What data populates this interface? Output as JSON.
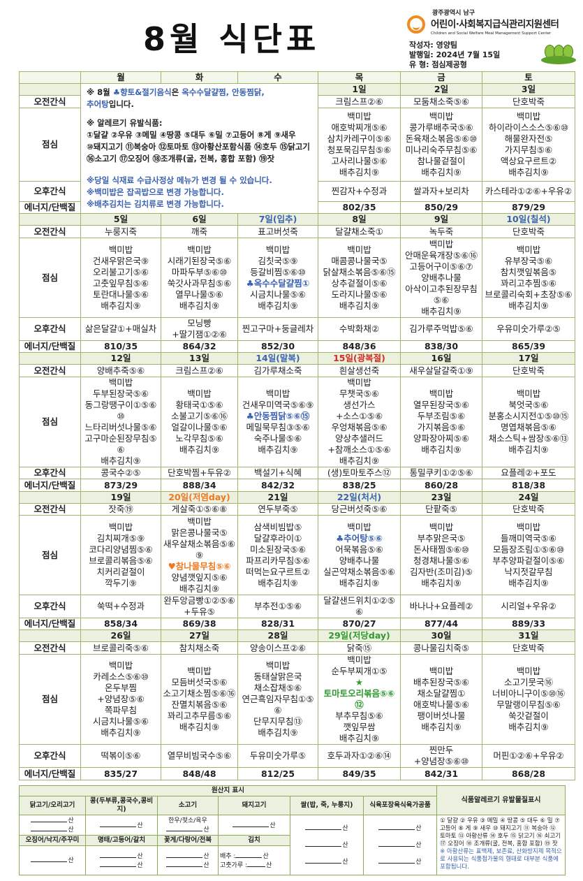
{
  "header": {
    "title": "8월 식단표",
    "logo_region": "광주광역시 남구",
    "logo_name": "어린이·사회복지급식관리지원센터",
    "logo_en": "Children and Social Welfare Meal Management Support Center",
    "author_label": "작성자:",
    "author": "영양팀",
    "issued_label": "발행일:",
    "issued": "2024년  7월  15일",
    "type_label": "유   형:",
    "type": "점심제공형"
  },
  "weekdays": [
    "월",
    "화",
    "수",
    "목",
    "금",
    "토"
  ],
  "row_labels": {
    "am": "오전간식",
    "lunch": "점심",
    "pm": "오후간식",
    "energy": "에너지/단백질"
  },
  "notes": {
    "l1_prefix": "※ 8월 ",
    "l1_highlight": "♣향토&절기음식",
    "l1_mid": "은 ",
    "l1_dishes": "옥수수달걀찜, 안동찜닭, 추어탕",
    "l1_suffix": "입니다.",
    "allergy_title": "※ 알레르기 유발식품:",
    "allergy_list": "①달걀 ②우유 ③메밀 ④땅콩 ⑤대두 ⑥밀 ⑦고등어 ⑧게 ⑨새우 ⑩돼지고기 ⑪복숭아 ⑫토마토 ⑬아황산포함식품 ⑭호두 ⑮닭고기 ⑯소고기 ⑰오징어 ⑱조개류(굴, 전복, 홍합 포함) ⑲잣",
    "note1": "※당일 식재료 수급사정상 메뉴가 변경 될 수 있습니다.",
    "note2": "※백미밥은 잡곡밥으로 변경 가능합니다.",
    "note3": "※배추김치는 김치류로 변경 가능합니다."
  },
  "colors": {
    "blue": "#3a62b0",
    "red": "#d42a20",
    "orange": "#f07820",
    "green": "#2e9a2e",
    "border": "#9bb56a",
    "date_bg": "#ebf1de"
  },
  "weeks": [
    {
      "days": [
        {
          "date": "1일",
          "am": "크림스프②⑥",
          "lunch": [
            "백미밥",
            "애호박찌개⑤⑥",
            "삼치카레구이⑤⑥",
            "청포묵김무침⑤⑥",
            "고사리나물⑤⑥",
            "배추김치⑨"
          ],
          "pm": "찐감자+수정과",
          "energy": "802/35"
        },
        {
          "date": "2일",
          "am": "모둠채소죽⑤⑥",
          "lunch": [
            "백미밥",
            "콩가루배추국⑤⑥",
            "돈육채소볶음⑤⑥⑩",
            "미나리숙주무침⑤⑥",
            "참나물겉절이",
            "배추김치⑨"
          ],
          "pm": "쌀과자+보리차",
          "energy": "850/29"
        },
        {
          "date": "3일",
          "am": "단호박죽",
          "lunch": [
            "백미밥",
            "하이라이스소스⑤⑥⑩",
            "해물완자전⑤",
            "가지무침⑤⑥",
            "액상요구르트②",
            "배추김치⑨"
          ],
          "pm": "카스테라①②⑥+우유②",
          "energy": "879/29"
        }
      ]
    },
    {
      "days": [
        {
          "date": "5일",
          "am": "누룽지죽",
          "lunch": [
            "백미밥",
            "건새우맑은국⑨",
            "오리불고기⑤⑥",
            "고춧잎무침⑤⑥",
            "토란대나물⑤⑥",
            "배추김치⑨"
          ],
          "pm": "삶은달걀①+매실차",
          "energy": "810/35"
        },
        {
          "date": "6일",
          "am": "깨죽",
          "lunch": [
            "백미밥",
            "시래기된장국⑤⑥",
            "마파두부⑤⑥⑩",
            "쑥갓사과무침⑤⑥",
            "열무나물⑤⑥",
            "배추김치⑨"
          ],
          "pm": "모닝빵+딸기잼①②⑥",
          "energy": "864/32"
        },
        {
          "date": "7일(입추)",
          "date_color": "blue",
          "am": "표고버섯죽",
          "lunch": [
            "백미밥",
            "김칫국⑤⑨",
            "등갈비찜⑤⑥⑩",
            "♣옥수수달걀찜①",
            "시금치나물⑤⑥",
            "배추김치⑨"
          ],
          "highlight": {
            "index": 3,
            "color": "blue"
          },
          "pm": "찐고구마+둥글레차",
          "energy": "852/30"
        },
        {
          "date": "8일",
          "am": "달걀채소죽①",
          "lunch": [
            "백미밥",
            "매콤콩나물국⑤",
            "닭살채소볶음⑤⑥⑮",
            "상추겉절이⑤⑥",
            "도라지나물⑤⑥",
            "배추김치⑨"
          ],
          "pm": "수박화채②",
          "energy": "848/36"
        },
        {
          "date": "9일",
          "am": "녹두죽",
          "lunch": [
            "백미밥",
            "안매운육개장⑤⑥⑯",
            "고등어구이⑤⑥⑦",
            "양배추나물",
            "아삭이고추된장무침⑤⑥",
            "배추김치⑨"
          ],
          "pm": "김가루주먹밥⑤⑥",
          "energy": "838/30"
        },
        {
          "date": "10일(칠석)",
          "date_color": "blue",
          "am": "단호박죽",
          "lunch": [
            "백미밥",
            "유부장국⑤⑥",
            "참치깻잎볶음⑤",
            "꽈리고추찜⑤⑥",
            "브로콜리숙회+초장⑤⑥",
            "배추김치⑨"
          ],
          "pm": "우유미숫가루②⑤",
          "energy": "865/39"
        }
      ]
    },
    {
      "days": [
        {
          "date": "12일",
          "am": "양배추죽⑤⑥",
          "lunch": [
            "백미밥",
            "두부된장국⑤⑥",
            "동그랑땡구이①⑤⑥⑩",
            "느타리버섯나물⑤⑥",
            "고구마순된장무침⑤⑥",
            "배추김치⑨"
          ],
          "pm": "콩국수②⑤",
          "energy": "873/29"
        },
        {
          "date": "13일",
          "am": "크림스프②⑥",
          "lunch": [
            "백미밥",
            "황태국①⑤⑥",
            "소불고기⑤⑥⑯",
            "얼갈이나물⑤⑥",
            "노각무침⑤⑥",
            "배추김치⑨"
          ],
          "pm": "단호박찜+두유②",
          "energy": "888/34"
        },
        {
          "date": "14일(말복)",
          "date_color": "blue",
          "am": "김가루채소죽",
          "lunch": [
            "백미밥",
            "건새우미역국⑤⑥⑨",
            "♣안동찜닭⑤⑥⑮",
            "메밀묵무침③⑤⑥",
            "숙주나물⑤⑥",
            "배추김치⑨"
          ],
          "highlight": {
            "index": 2,
            "color": "blue"
          },
          "pm": "백설기+식혜",
          "energy": "842/32"
        },
        {
          "date": "15일(광복절)",
          "date_color": "red",
          "am": "흰살생선죽",
          "lunch": [
            "백미밥",
            "무챗국⑤⑥",
            "생선가스+소스①⑤⑥",
            "우엉채볶음⑤⑥",
            "양상추샐러드+참깨소스①⑤⑥",
            "배추김치⑨"
          ],
          "pm": "(생)토마토주스⑫",
          "energy": "838/25"
        },
        {
          "date": "16일",
          "am": "새우살달걀죽①⑨",
          "lunch": [
            "백미밥",
            "열무된장국⑤⑥",
            "두부조림⑤⑥",
            "가지볶음⑤⑥",
            "양파장아찌⑤⑥",
            "배추김치⑨"
          ],
          "pm": "통밀쿠키①②⑤⑥",
          "energy": "860/28"
        },
        {
          "date": "17일",
          "am": "단호박죽",
          "lunch": [
            "백미밥",
            "북엇국⑤⑥",
            "분홍소시지전①⑤⑩⑮",
            "명엽채볶음⑤⑥",
            "채소스틱+쌈장⑤⑥⑬",
            "배추김치⑨"
          ],
          "pm": "요플레②+포도",
          "energy": "818/38"
        }
      ]
    },
    {
      "days": [
        {
          "date": "19일",
          "am": "잣죽⑲",
          "lunch": [
            "백미밥",
            "김치찌개⑤⑨",
            "코다리양념찜⑤⑥",
            "브로콜리볶음⑤⑥",
            "치커리겉절이",
            "깍두기⑨"
          ],
          "pm": "쑥떡+수정과",
          "energy": "858/34"
        },
        {
          "date": "20일(저염day)",
          "date_color": "orange",
          "am": "게살죽①⑤⑥⑧",
          "lunch": [
            "백미밥",
            "맑은콩나물국⑤",
            "새우살채소볶음⑤⑥⑨",
            "♥참나물무침⑤⑥",
            "양념깻잎지⑤⑥",
            "배추김치⑨"
          ],
          "highlight": {
            "index": 3,
            "color": "orange"
          },
          "pm": "완두앙금빵①②⑤⑥+두유⑤",
          "energy": "869/38"
        },
        {
          "date": "21일",
          "am": "연두부죽⑤",
          "lunch": [
            "삼색비빔밥⑤",
            "달걀후라이①",
            "미소된장국⑤⑥",
            "파프리카무침⑤⑥",
            "떠먹는요구르트②",
            "배추김치⑨"
          ],
          "pm": "부추전①⑤⑥",
          "energy": "828/31"
        },
        {
          "date": "22일(처서)",
          "date_color": "blue",
          "am": "당근버섯죽⑤⑥",
          "lunch": [
            "백미밥",
            "♣추어탕⑤⑥",
            "어묵볶음⑤⑥",
            "양배추나물",
            "실곤약채소볶음⑤⑥",
            "배추김치⑨"
          ],
          "highlight": {
            "index": 1,
            "color": "blue"
          },
          "pm": "달걀샌드위치①②⑤⑥",
          "energy": "870/27"
        },
        {
          "date": "23일",
          "am": "단팥죽⑤",
          "lunch": [
            "백미밥",
            "부추맑은국⑤",
            "돈사태찜⑤⑥⑩",
            "청경채나물⑤⑥",
            "김자반(조미김)⑤",
            "배추김치⑨"
          ],
          "pm": "바나나+요플레②",
          "energy": "877/44"
        },
        {
          "date": "24일",
          "am": "단호박죽",
          "lunch": [
            "백미밥",
            "들깨미역국⑤⑥",
            "모듬장조림①⑤⑥⑩",
            "부추양파겉절이⑤⑥",
            "낙지젓갈무침",
            "배추김치⑨"
          ],
          "pm": "시리얼+우유②",
          "energy": "889/33"
        }
      ]
    },
    {
      "days": [
        {
          "date": "26일",
          "am": "브로콜리죽⑤⑥",
          "lunch": [
            "백미밥",
            "카레소스⑤⑥⑩",
            "온두부찜+양념장⑤⑥",
            "쪽파무침",
            "시금치나물⑤⑥",
            "배추김치⑨"
          ],
          "pm": "떡볶이⑤⑥",
          "energy": "835/27"
        },
        {
          "date": "27일",
          "am": "참치채소죽",
          "lunch": [
            "백미밥",
            "모듬버섯국⑤⑥",
            "소고기채소찜⑤⑥⑯",
            "잔멸치볶음⑤⑥",
            "꽈리고추무름⑤⑥",
            "배추김치⑨"
          ],
          "pm": "열무비빔국수⑤⑥",
          "energy": "848/48"
        },
        {
          "date": "28일",
          "am": "양송이스프②⑥",
          "lunch": [
            "백미밥",
            "동태살맑은국",
            "채소잡채⑤⑥",
            "연근흑임자무침①⑤⑥",
            "단무지무침⑬",
            "배추김치⑨"
          ],
          "pm": "두유미숫가루⑤",
          "energy": "812/25"
        },
        {
          "date": "29일(저당day)",
          "date_color": "green",
          "am": "닭죽⑮",
          "lunch": [
            "백미밥",
            "순두부찌개①⑤",
            "★토마토오리볶음⑤⑥⑫",
            "부추무침⑤⑥",
            "깻잎무쌈",
            "배추김치⑨"
          ],
          "highlight": {
            "index": 2,
            "color": "green"
          },
          "pm": "호두과자①②⑥⑭",
          "energy": "849/35"
        },
        {
          "date": "30일",
          "am": "콩나물김치죽⑤",
          "lunch": [
            "백미밥",
            "배추된장국⑤⑥",
            "채소달걀찜①",
            "애호박나물⑤⑥",
            "팽이버섯나물",
            "배추김치⑨"
          ],
          "pm": "찐만두+양념장⑤⑥⑩",
          "energy": "842/31"
        },
        {
          "date": "31일",
          "am": "단호박죽",
          "lunch": [
            "백미밥",
            "소고기뭇국⑯",
            "너비아니구이⑤⑩⑯",
            "무말랭이무침⑤⑥",
            "쑥갓겉절이",
            "배추김치⑨"
          ],
          "pm": "머핀①②⑥+우유②",
          "energy": "868/28"
        }
      ]
    }
  ],
  "origin": {
    "title": "원산지 표시",
    "suffix": "산",
    "row1": [
      "닭고기/오리고기",
      "콩(두부류,콩국수,콩비지)",
      "소고기",
      "돼지고기"
    ],
    "row2": [
      "오징어/낙지/주꾸미",
      "명태/고등어/갈치",
      "꽃게/다랑어/전복",
      "김치"
    ],
    "rice": "쌀(밥, 죽, 누룽지)",
    "meat_processed": "식육포장육식육가공품",
    "beef_note": "한우/젖소/육우",
    "kimchi_cabbage": "배추 :",
    "kimchi_pepper": "고춧가루 :"
  },
  "allergy_box": {
    "title": "식품알레르기 유발물질표시",
    "list": "① 달걀 ② 우유 ③ 메밀 ④ 땅콩 ⑤ 대두 ⑥ 밀 ⑦ 고등어 ⑧ 게 ⑨ 새우 ⑩ 돼지고기 ⑪ 복숭아 ⑫ 토마토 ⑬ 아황산류 ⑭ 호두 ⑮ 닭고기 ⑯ 쇠고기 ⑰ 오징어 ⑱ 조개류(굴, 전복, 홍합 포함) ⑲ 잣",
    "note": "※ 아황산류는 표백제, 보존료, 산화방지제 목적으로 사용되는 식품첨가물의 형태로 대부분 식품에 포함됩니다."
  }
}
